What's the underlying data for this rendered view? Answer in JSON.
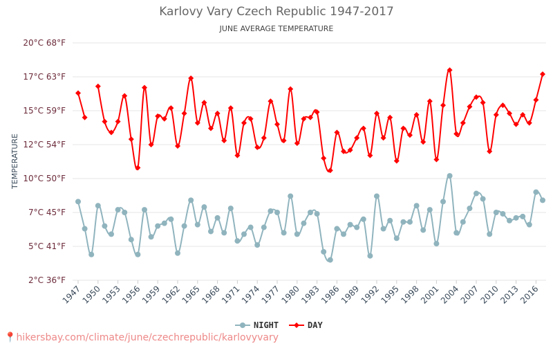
{
  "chart_data": {
    "type": "line",
    "title": "Karlovy Vary Czech Republic 1947-2017",
    "subtitle": "JUNE AVERAGE TEMPERATURE",
    "ylabel": "TEMPERATURE",
    "xlabel": "",
    "ylim": [
      2.5,
      20
    ],
    "yticks": [
      {
        "value": 20,
        "label": "20°C 68°F"
      },
      {
        "value": 17.5,
        "label": "17°C 63°F"
      },
      {
        "value": 15,
        "label": "15°C 59°F"
      },
      {
        "value": 12.5,
        "label": "12°C 54°F"
      },
      {
        "value": 10,
        "label": "10°C 50°F"
      },
      {
        "value": 7.5,
        "label": "7°C 45°F"
      },
      {
        "value": 5,
        "label": "5°C 41°F"
      },
      {
        "value": 2.5,
        "label": "2°C 36°F"
      }
    ],
    "xticks": [
      "1947",
      "1950",
      "1953",
      "1956",
      "1959",
      "1962",
      "1965",
      "1968",
      "1971",
      "1974",
      "1977",
      "1980",
      "1983",
      "1986",
      "1989",
      "1992",
      "1995",
      "1998",
      "2001",
      "2004",
      "2007",
      "2010",
      "2013",
      "2016"
    ],
    "grid": true,
    "legend_position": "bottom",
    "x_start": 1947,
    "x_end": 2017,
    "series": [
      {
        "name": "NIGHT",
        "color": "#90b4be",
        "values": [
          8.3,
          6.3,
          4.4,
          8.0,
          6.5,
          5.9,
          7.7,
          7.5,
          5.5,
          4.4,
          7.7,
          5.7,
          6.5,
          6.7,
          7.0,
          4.5,
          6.5,
          8.4,
          6.6,
          7.9,
          6.1,
          7.1,
          6.0,
          7.8,
          5.4,
          5.9,
          6.4,
          5.1,
          6.4,
          7.6,
          7.5,
          6.0,
          8.7,
          5.9,
          6.7,
          7.5,
          7.4,
          4.6,
          4.0,
          6.3,
          5.9,
          6.6,
          6.4,
          7.0,
          4.3,
          8.7,
          6.3,
          6.9,
          5.6,
          6.8,
          6.8,
          8.0,
          6.2,
          7.7,
          5.2,
          8.3,
          10.2,
          6.0,
          6.8,
          7.8,
          8.9,
          8.5,
          5.9,
          7.5,
          7.4,
          6.9,
          7.1,
          7.2,
          6.6,
          9.0,
          8.4
        ]
      },
      {
        "name": "DAY",
        "color": "#ff0000",
        "values": [
          16.3,
          14.5,
          null,
          16.8,
          14.2,
          13.4,
          14.2,
          16.1,
          12.9,
          10.8,
          16.7,
          12.5,
          14.6,
          14.4,
          15.2,
          12.4,
          14.8,
          17.4,
          14.1,
          15.6,
          13.7,
          14.8,
          12.8,
          15.2,
          11.7,
          14.1,
          14.4,
          12.3,
          13.0,
          15.7,
          14.0,
          12.8,
          16.6,
          12.6,
          14.4,
          14.5,
          14.9,
          11.5,
          10.6,
          13.4,
          12.0,
          12.1,
          13.0,
          13.7,
          11.7,
          14.8,
          13.0,
          14.5,
          11.3,
          13.7,
          13.2,
          14.7,
          12.7,
          15.7,
          11.4,
          15.4,
          18.0,
          13.3,
          14.1,
          15.3,
          16.0,
          15.6,
          12.0,
          14.7,
          15.4,
          14.8,
          14.0,
          14.7,
          14.1,
          15.8,
          17.7
        ]
      }
    ]
  },
  "footer": {
    "url_text": "hikersbay.com/climate/june/czechrepublic/karlovyvary"
  }
}
